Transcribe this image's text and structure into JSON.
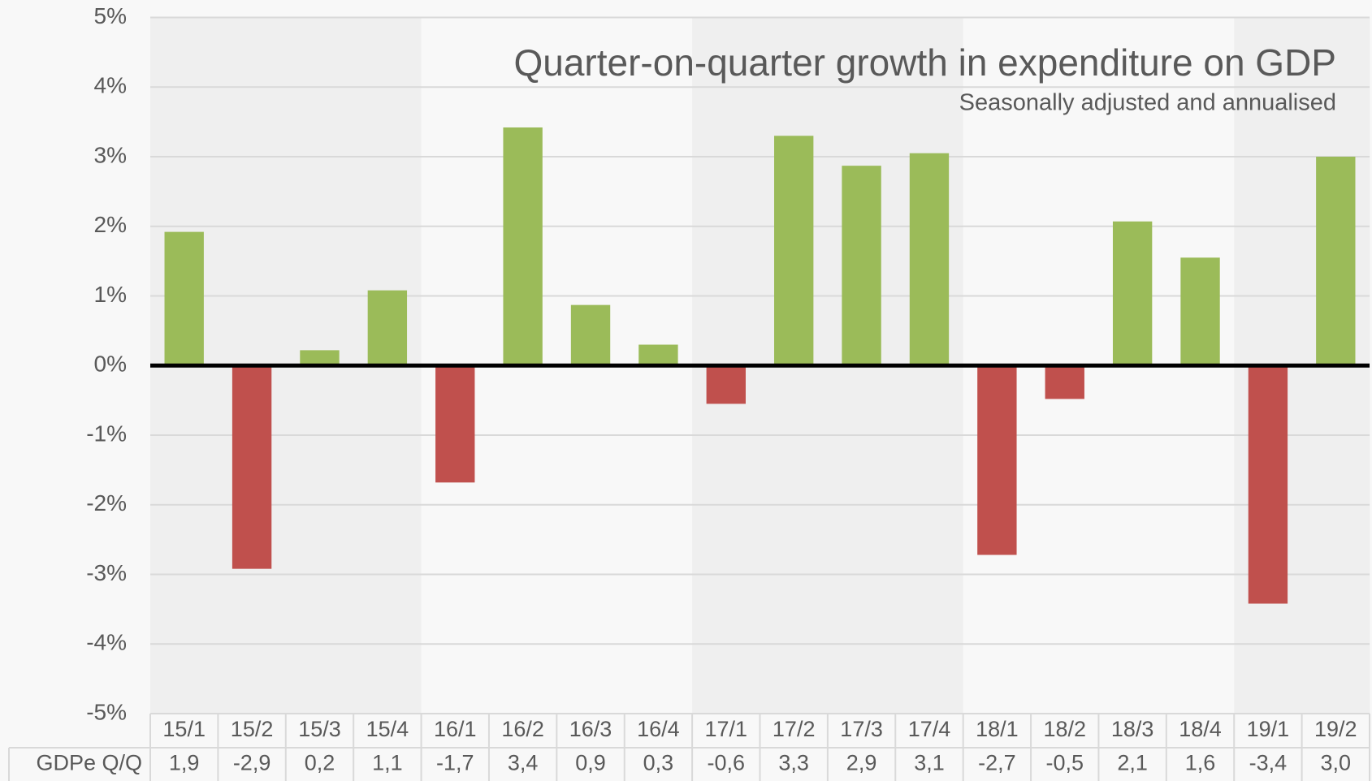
{
  "chart_data": {
    "type": "bar",
    "title": "Quarter-on-quarter growth in expenditure on GDP",
    "subtitle": "Seasonally adjusted and annualised",
    "categories": [
      "15/1",
      "15/2",
      "15/3",
      "15/4",
      "16/1",
      "16/2",
      "16/3",
      "16/4",
      "17/1",
      "17/2",
      "17/3",
      "17/4",
      "18/1",
      "18/2",
      "18/3",
      "18/4",
      "19/1",
      "19/2"
    ],
    "series": [
      {
        "name": "GDPe Q/Q",
        "color": "#9bbb59",
        "negative_color": "#c0504d",
        "values": [
          1.92,
          -2.92,
          0.22,
          1.08,
          -1.68,
          3.42,
          0.87,
          0.3,
          -0.55,
          3.3,
          2.87,
          3.05,
          -2.72,
          -0.48,
          2.07,
          1.55,
          -3.42,
          3.0
        ],
        "value_labels": [
          "1,9",
          "-2,9",
          "0,2",
          "1,1",
          "-1,7",
          "3,4",
          "0,9",
          "0,3",
          "-0,6",
          "3,3",
          "2,9",
          "3,1",
          "-2,7",
          "-0,5",
          "2,1",
          "1,6",
          "-3,4",
          "3,0"
        ]
      }
    ],
    "ylim": [
      -5,
      5
    ],
    "yticks": [
      {
        "value": -5,
        "label": "-5%"
      },
      {
        "value": -4,
        "label": "-4%"
      },
      {
        "value": -3,
        "label": "-3%"
      },
      {
        "value": -2,
        "label": "-2%"
      },
      {
        "value": -1,
        "label": "-1%"
      },
      {
        "value": 0,
        "label": "0%"
      },
      {
        "value": 1,
        "label": "1%"
      },
      {
        "value": 2,
        "label": "2%"
      },
      {
        "value": 3,
        "label": "3%"
      },
      {
        "value": 4,
        "label": "4%"
      },
      {
        "value": 5,
        "label": "5%"
      }
    ],
    "grid": true
  }
}
